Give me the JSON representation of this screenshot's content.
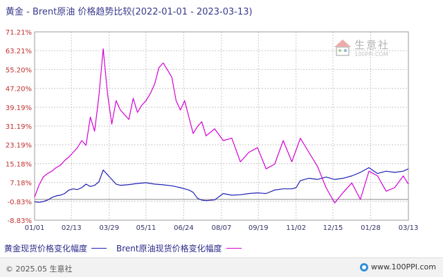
{
  "title": "黄金 - Brent原油 价格趋势比较(2022-01-01 - 2023-03-13)",
  "watermark": {
    "name": "生意社",
    "url": "100PPI.COM"
  },
  "footer": {
    "copyright": "© 2025.05 生意社",
    "site": "www.100PPI.com"
  },
  "colors": {
    "gold": "#1f1fb4",
    "brent": "#d400d4",
    "axis_text": "#c03030",
    "x_text": "#333366",
    "grid": "#c8c8c8"
  },
  "chart_data": {
    "type": "line",
    "ylabel_unit": "%",
    "ylim": [
      -8.83,
      71.21
    ],
    "y_ticks": [
      "71.21%",
      "63.21%",
      "55.20%",
      "47.20%",
      "39.19%",
      "31.19%",
      "23.19%",
      "15.18%",
      "7.18%",
      "-0.83%",
      "-8.83%"
    ],
    "y_tick_values": [
      71.21,
      63.21,
      55.2,
      47.2,
      39.19,
      31.19,
      23.19,
      15.18,
      7.18,
      -0.83,
      -8.83
    ],
    "x_range_days": [
      0,
      436
    ],
    "x_ticks": [
      "01/01",
      "02/13",
      "03/29",
      "05/11",
      "06/24",
      "08/07",
      "09/19",
      "11/02",
      "12/15",
      "01/28",
      "03/13"
    ],
    "x_tick_days": [
      0,
      43,
      87,
      130,
      174,
      218,
      261,
      305,
      348,
      392,
      436
    ],
    "series": [
      {
        "name": "黄金现货价格变化幅度",
        "color": "#1f1fb4",
        "x": [
          0,
          5,
          10,
          15,
          20,
          25,
          30,
          35,
          40,
          45,
          50,
          55,
          60,
          65,
          70,
          75,
          80,
          85,
          90,
          95,
          100,
          110,
          120,
          130,
          140,
          150,
          160,
          170,
          175,
          180,
          185,
          190,
          195,
          200,
          210,
          220,
          230,
          240,
          250,
          260,
          270,
          280,
          290,
          300,
          305,
          310,
          320,
          330,
          340,
          350,
          360,
          370,
          380,
          390,
          400,
          410,
          420,
          430,
          436
        ],
        "y": [
          -1.0,
          -1.2,
          -0.9,
          -0.3,
          0.8,
          1.5,
          1.8,
          2.5,
          4.0,
          4.5,
          4.2,
          5.0,
          6.5,
          5.5,
          6.0,
          7.5,
          12.5,
          10.5,
          8.5,
          6.5,
          6.0,
          6.3,
          6.8,
          7.1,
          6.5,
          6.2,
          5.8,
          5.0,
          4.5,
          4.0,
          3.0,
          0.5,
          -0.3,
          -0.5,
          -0.2,
          2.5,
          1.8,
          2.0,
          2.5,
          2.8,
          2.5,
          4.0,
          4.5,
          4.5,
          5.0,
          8.0,
          9.0,
          8.5,
          9.5,
          8.5,
          9.0,
          10.0,
          11.5,
          13.5,
          11.0,
          12.0,
          11.5,
          12.0,
          13.0
        ]
      },
      {
        "name": "Brent原油现货价格变化幅度",
        "color": "#d400d4",
        "x": [
          0,
          5,
          10,
          15,
          20,
          25,
          30,
          35,
          40,
          45,
          50,
          55,
          60,
          65,
          70,
          75,
          80,
          85,
          90,
          95,
          100,
          105,
          110,
          115,
          120,
          125,
          130,
          135,
          140,
          145,
          150,
          155,
          160,
          165,
          170,
          175,
          180,
          185,
          190,
          195,
          200,
          210,
          220,
          230,
          240,
          250,
          260,
          270,
          280,
          290,
          300,
          310,
          320,
          330,
          340,
          350,
          360,
          370,
          380,
          390,
          400,
          410,
          420,
          430,
          436
        ],
        "y": [
          1.0,
          6.0,
          9.5,
          11.0,
          12.0,
          13.5,
          14.5,
          16.5,
          18.0,
          20.0,
          22.0,
          25.0,
          23.0,
          35.0,
          29.0,
          44.0,
          64.0,
          45.0,
          32.0,
          42.0,
          38.0,
          36.0,
          34.0,
          43.0,
          37.0,
          40.0,
          42.0,
          45.0,
          49.0,
          56.0,
          58.0,
          55.0,
          52.0,
          42.0,
          38.0,
          42.0,
          35.0,
          28.0,
          31.0,
          33.0,
          27.0,
          30.0,
          25.0,
          26.0,
          16.0,
          20.0,
          22.0,
          13.0,
          15.0,
          25.0,
          16.0,
          26.0,
          20.0,
          14.0,
          5.0,
          -1.5,
          3.0,
          7.0,
          0.0,
          12.0,
          10.0,
          3.5,
          5.0,
          10.0,
          6.5
        ]
      }
    ],
    "grid": true
  }
}
